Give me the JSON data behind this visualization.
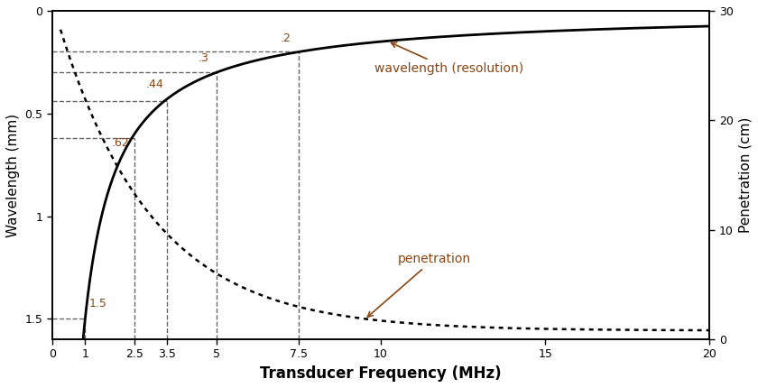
{
  "title": "",
  "xlabel": "Transducer Frequency (MHz)",
  "ylabel_left": "Wavelength (mm)",
  "ylabel_right": "Penetration (cm)",
  "xlim": [
    0,
    20
  ],
  "ylim_left": [
    0,
    1.6
  ],
  "ylim_right": [
    0,
    30
  ],
  "ref_points": [
    {
      "freq": 1.0,
      "wavelength": 1.5,
      "label": "1.5"
    },
    {
      "freq": 2.5,
      "wavelength": 0.62,
      "label": ".62"
    },
    {
      "freq": 3.5,
      "wavelength": 0.44,
      "label": ".44"
    },
    {
      "freq": 5.0,
      "wavelength": 0.3,
      "label": ".3"
    },
    {
      "freq": 7.5,
      "wavelength": 0.2,
      "label": ".2"
    }
  ],
  "xticks": [
    0,
    1,
    2.5,
    3.5,
    5,
    7.5,
    10,
    15,
    20
  ],
  "yticks_left": [
    0,
    0.5,
    1.0,
    1.5
  ],
  "yticks_right": [
    0,
    10,
    20,
    30
  ],
  "line_color": "#000000",
  "background_color": "#ffffff",
  "annotation_color": "#8B4513",
  "dashed_color": "#666666",
  "pen_A": 30.0,
  "pen_b": 0.35,
  "pen_c": 0.8
}
